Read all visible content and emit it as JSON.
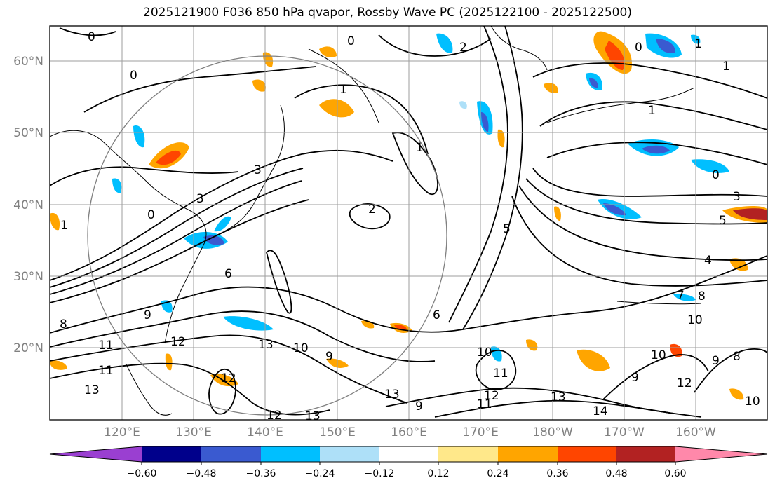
{
  "title": "2025121900 F036 850 hPa qvapor, Rossby Wave PC (2025122100 - 2025122500)",
  "axes": {
    "lon_ticks": [
      "120°E",
      "130°E",
      "140°E",
      "150°E",
      "160°E",
      "170°E",
      "180°W",
      "170°W",
      "160°W"
    ],
    "lat_ticks": [
      "20°N",
      "30°N",
      "40°N",
      "50°N",
      "60°N"
    ]
  },
  "colorbar": {
    "tick_labels": [
      "−0.60",
      "−0.48",
      "−0.36",
      "−0.24",
      "−0.12",
      "0.12",
      "0.24",
      "0.36",
      "0.48",
      "0.60"
    ],
    "colors": [
      "#9a3fd1",
      "#00008b",
      "#3a5ad0",
      "#00bfff",
      "#aee0f8",
      "#ffffff",
      "#ffe88a",
      "#ffa500",
      "#ff4500",
      "#b22222",
      "#ff88aa"
    ]
  },
  "contour_labels": [
    "0",
    "0",
    "0",
    "2",
    "1",
    "0",
    "1",
    "1",
    "0",
    "3",
    "1",
    "0",
    "3",
    "5",
    "4",
    "1",
    "8",
    "5",
    "6",
    "7",
    "8",
    "10",
    "9",
    "9",
    "11",
    "12",
    "13",
    "10",
    "9",
    "10",
    "11",
    "12",
    "11",
    "13",
    "13",
    "12",
    "9",
    "13",
    "14",
    "10",
    "9",
    "8",
    "12",
    "10",
    "13",
    "2",
    "3",
    "1",
    "6",
    "11",
    "12"
  ]
}
